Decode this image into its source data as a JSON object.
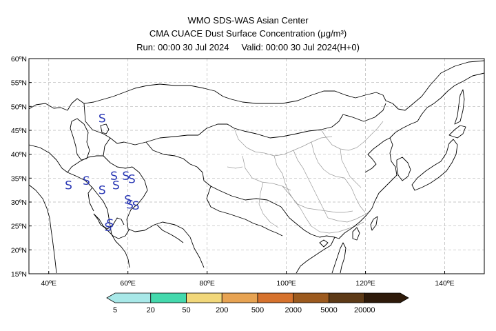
{
  "header": {
    "line1": "WMO SDS-WAS Asian Center",
    "line2": "CMA CUACE Dust Surface Concentration (μg/m³)",
    "run": "Run: 00:00 30 Jul 2024",
    "valid": "Valid: 00:00 30 Jul 2024(H+0)"
  },
  "map": {
    "lat_labels": [
      "60ºN",
      "55ºN",
      "50ºN",
      "45ºN",
      "40ºN",
      "35ºN",
      "30ºN",
      "25ºN",
      "20ºN",
      "15ºN"
    ],
    "lon_labels": [
      "40ºE",
      "60ºE",
      "80ºE",
      "100ºE",
      "120ºE",
      "140ºE"
    ],
    "lat_values": [
      60,
      55,
      50,
      45,
      40,
      35,
      30,
      25,
      20,
      15
    ],
    "lon_values": [
      40,
      60,
      80,
      100,
      120,
      140
    ],
    "lon_range": [
      35,
      150
    ],
    "lat_range": [
      15,
      60
    ],
    "grid": true,
    "storm_symbol": "S",
    "storm_markers": [
      {
        "lon": 53.5,
        "lat": 47.5
      },
      {
        "lon": 45,
        "lat": 33.5
      },
      {
        "lon": 49.5,
        "lat": 34.5
      },
      {
        "lon": 53.5,
        "lat": 32.5
      },
      {
        "lon": 56.5,
        "lat": 35.5
      },
      {
        "lon": 57,
        "lat": 33.5
      },
      {
        "lon": 59.5,
        "lat": 35.5
      },
      {
        "lon": 61,
        "lat": 34.8
      },
      {
        "lon": 60,
        "lat": 30.5
      },
      {
        "lon": 60.5,
        "lat": 29.5
      },
      {
        "lon": 62,
        "lat": 29.3
      },
      {
        "lon": 55.5,
        "lat": 25.5
      },
      {
        "lon": 55,
        "lat": 24.8
      }
    ]
  },
  "colorbar": {
    "labels": [
      "5",
      "20",
      "50",
      "200",
      "500",
      "2000",
      "5000",
      "20000"
    ],
    "colors": [
      "#a8e8e8",
      "#44d9ad",
      "#f1d77a",
      "#e7a352",
      "#d6722d",
      "#9c5a1e",
      "#5d3a17",
      "#2e1a0a"
    ]
  }
}
